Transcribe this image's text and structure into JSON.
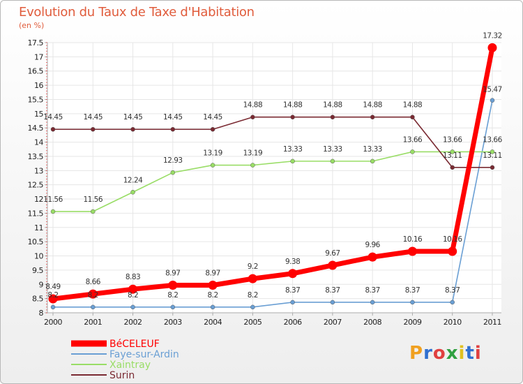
{
  "title": "Evolution du Taux de Taxe d'Habitation",
  "subtitle": "(en %)",
  "logo": {
    "letters": [
      "P",
      "r",
      "o",
      "x",
      "i",
      "t",
      "i"
    ],
    "colors": [
      "#f0a020",
      "#3070d0",
      "#e04040",
      "#30a040",
      "#e0c020",
      "#3070d0",
      "#e04040"
    ]
  },
  "chart_data": {
    "type": "line",
    "x": [
      "2000",
      "2001",
      "2002",
      "2003",
      "2004",
      "2005",
      "2006",
      "2007",
      "2008",
      "2009",
      "2010",
      "2011"
    ],
    "ylim": [
      8,
      17.5
    ],
    "yticks": [
      "8",
      "8.5",
      "9",
      "9.5",
      "10",
      "10.5",
      "11",
      "11.5",
      "12",
      "12.5",
      "13",
      "13.5",
      "14",
      "14.5",
      "15",
      "15.5",
      "16",
      "16.5",
      "17",
      "17.5"
    ],
    "legend_position": "bottom-left",
    "series": [
      {
        "name": "BéCELEUF",
        "color": "#ff0000",
        "values": [
          8.49,
          8.66,
          8.83,
          8.97,
          8.97,
          9.2,
          9.38,
          9.67,
          9.96,
          10.16,
          10.16,
          17.32
        ],
        "labels": [
          "8.49",
          "8.66",
          "8.83",
          "8.97",
          "8.97",
          "9.2",
          "9.38",
          "9.67",
          "9.96",
          "10.16",
          "10.16",
          "17.32"
        ]
      },
      {
        "name": "Faye-sur-Ardin",
        "color": "#6a9fd4",
        "values": [
          8.2,
          8.2,
          8.2,
          8.2,
          8.2,
          8.2,
          8.37,
          8.37,
          8.37,
          8.37,
          8.37,
          15.47
        ],
        "labels": [
          "8.2",
          "8.2",
          "8.2",
          "8.2",
          "8.2",
          "8.2",
          "8.37",
          "8.37",
          "8.37",
          "8.37",
          "8.37",
          "15.47"
        ]
      },
      {
        "name": "Xaintray",
        "color": "#99dd66",
        "values": [
          11.56,
          11.56,
          12.24,
          12.93,
          13.19,
          13.19,
          13.33,
          13.33,
          13.33,
          13.66,
          13.66,
          13.66
        ],
        "labels": [
          "11.56",
          "11.56",
          "12.24",
          "12.93",
          "13.19",
          "13.19",
          "13.33",
          "13.33",
          "13.33",
          "13.66",
          "13.66",
          "13.66"
        ]
      },
      {
        "name": "Surin",
        "color": "#7a2a32",
        "values": [
          14.45,
          14.45,
          14.45,
          14.45,
          14.45,
          14.88,
          14.88,
          14.88,
          14.88,
          14.88,
          13.11,
          13.11
        ],
        "labels": [
          "14.45",
          "14.45",
          "14.45",
          "14.45",
          "14.45",
          "14.88",
          "14.88",
          "14.88",
          "14.88",
          "14.88",
          "13.11",
          "13.11"
        ]
      }
    ]
  }
}
